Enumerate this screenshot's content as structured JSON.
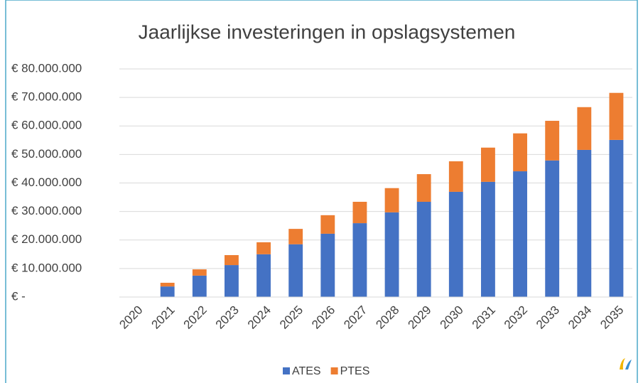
{
  "chart_data": {
    "type": "stacked_bar",
    "title": "Jaarlijkse investeringen in opslagsystemen",
    "categories": [
      "2020",
      "2021",
      "2022",
      "2023",
      "2024",
      "2025",
      "2026",
      "2027",
      "2028",
      "2029",
      "2030",
      "2031",
      "2032",
      "2033",
      "2034",
      "2035"
    ],
    "series": [
      {
        "name": "ATES",
        "color": "#4472c4",
        "values": [
          0,
          3700000,
          7500000,
          11200000,
          15000000,
          18500000,
          22200000,
          25900000,
          29700000,
          33400000,
          36900000,
          40400000,
          44100000,
          47900000,
          51600000,
          55100000
        ]
      },
      {
        "name": "PTES",
        "color": "#ed7d31",
        "values": [
          0,
          1300000,
          2200000,
          3500000,
          4200000,
          5400000,
          6500000,
          7500000,
          8500000,
          9700000,
          10700000,
          12000000,
          13300000,
          13900000,
          15000000,
          16500000
        ]
      }
    ],
    "ylim": [
      0,
      80000000
    ],
    "yticks": [
      {
        "value": 0,
        "label": "€ -"
      },
      {
        "value": 10000000,
        "label": "€ 10.000.000"
      },
      {
        "value": 20000000,
        "label": "€ 20.000.000"
      },
      {
        "value": 30000000,
        "label": "€ 30.000.000"
      },
      {
        "value": 40000000,
        "label": "€ 40.000.000"
      },
      {
        "value": 50000000,
        "label": "€ 50.000.000"
      },
      {
        "value": 60000000,
        "label": "€ 60.000.000"
      },
      {
        "value": 70000000,
        "label": "€ 70.000.000"
      },
      {
        "value": 80000000,
        "label": "€ 80.000.000"
      }
    ],
    "grid": true,
    "legend": "bottom"
  }
}
